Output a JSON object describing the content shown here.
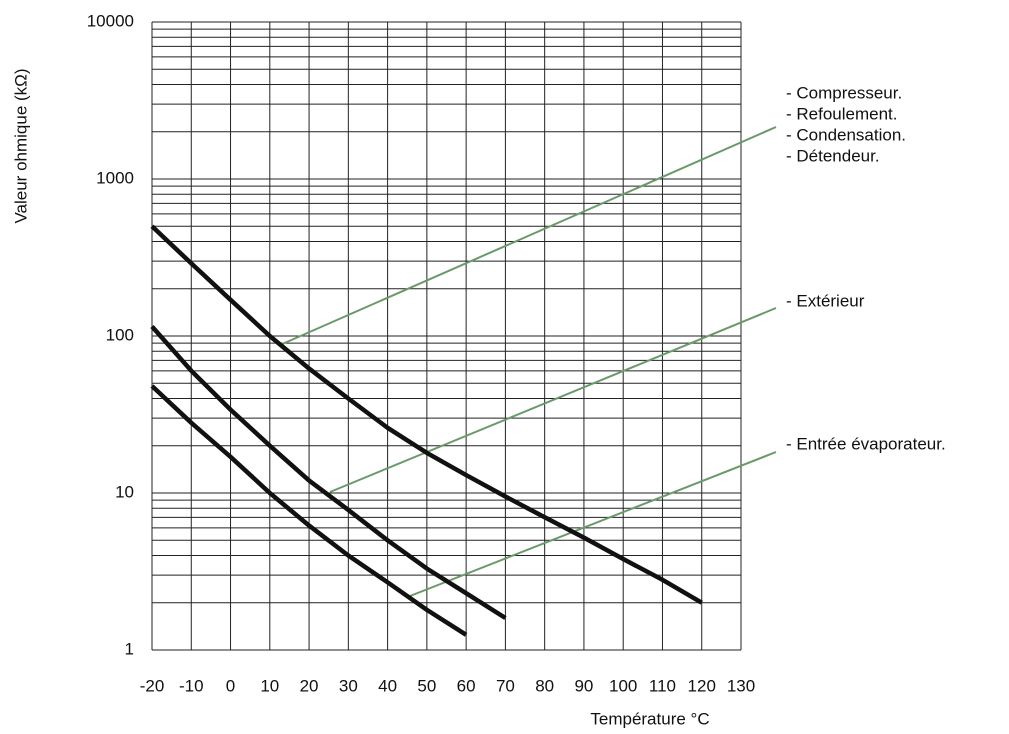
{
  "chart_data": {
    "type": "line",
    "y_label": "Valeur ohmique  (kΩ)",
    "x_label": "Température  °C",
    "log_y": true,
    "grid": true,
    "minor_grid": true,
    "xlim": [
      -20,
      130
    ],
    "xticks": [
      -20,
      -10,
      0,
      10,
      20,
      30,
      40,
      50,
      60,
      70,
      80,
      90,
      100,
      110,
      120,
      130
    ],
    "ylim": [
      1,
      10000
    ],
    "yticks": [
      1,
      10,
      100,
      1000,
      10000
    ],
    "series": [
      {
        "color": "#111111",
        "x": [
          -20,
          -10,
          0,
          10,
          20,
          30,
          40,
          50,
          60,
          70,
          80,
          90,
          100,
          110,
          120
        ],
        "values": [
          500,
          290,
          170,
          100,
          62,
          40,
          26,
          18,
          13,
          9.5,
          7,
          5.2,
          3.8,
          2.8,
          2
        ]
      },
      {
        "color": "#111111",
        "x": [
          -20,
          -10,
          0,
          10,
          20,
          30,
          40,
          50,
          60,
          70
        ],
        "values": [
          115,
          60,
          34,
          20,
          12,
          7.8,
          5,
          3.3,
          2.3,
          1.6
        ]
      },
      {
        "color": "#111111",
        "x": [
          -20,
          -10,
          0,
          10,
          20,
          30,
          40,
          50,
          60
        ],
        "values": [
          48,
          28,
          17,
          10,
          6.2,
          4,
          2.7,
          1.8,
          1.25
        ]
      }
    ],
    "annotations": [
      {
        "lines": [
          "- Compresseur.",
          "- Refoulement.",
          "- Condensation.",
          "- Détendeur."
        ]
      },
      {
        "lines": [
          "- Extérieur"
        ]
      },
      {
        "lines": [
          "- Entrée évaporateur."
        ]
      }
    ]
  }
}
